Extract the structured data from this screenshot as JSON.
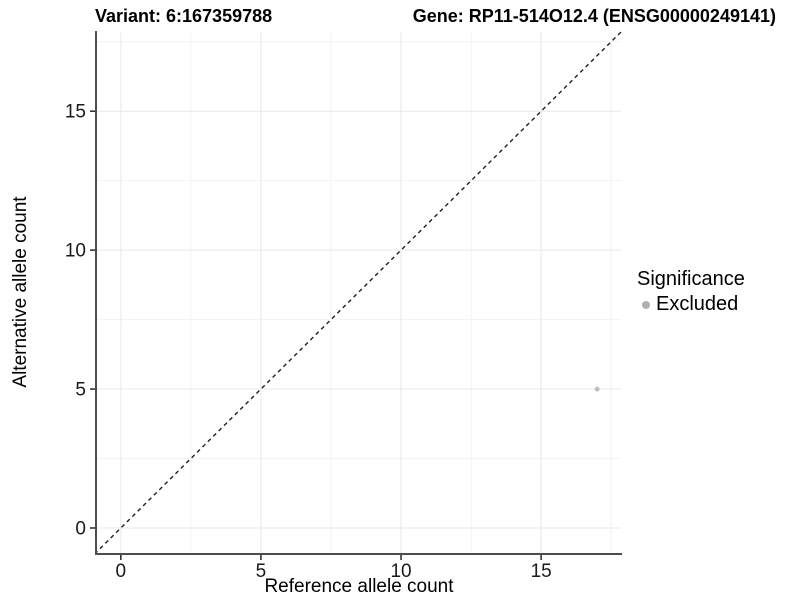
{
  "titles": {
    "variant": "Variant: 6:167359788",
    "gene": "Gene: RP11-514O12.4 (ENSG00000249141)"
  },
  "legend": {
    "title": "Significance",
    "items": [
      {
        "label": "Excluded",
        "color": "#b0b0b0"
      }
    ]
  },
  "chart_data": {
    "type": "scatter",
    "title": "Variant: 6:167359788  Gene: RP11-514O12.4 (ENSG00000249141)",
    "xlabel": "Reference allele count",
    "ylabel": "Alternative allele count",
    "xlim": [
      -0.85,
      17.85
    ],
    "ylim": [
      -0.9,
      17.85
    ],
    "x_ticks": [
      0,
      5,
      10,
      15
    ],
    "y_ticks": [
      0,
      5,
      10,
      15
    ],
    "x_minor_ticks": [
      2.5,
      7.5,
      12.5,
      17.5
    ],
    "y_minor_ticks": [
      2.5,
      7.5,
      12.5,
      17.5
    ],
    "grid": "major+minor",
    "legend_position": "right",
    "series": [
      {
        "name": "Excluded",
        "color": "#bebebe",
        "points": [
          {
            "x": 17,
            "y": 5
          }
        ]
      }
    ],
    "reference_line": {
      "type": "identity",
      "slope": 1,
      "intercept": 0,
      "style": "dashed",
      "color": "#1f1f1f"
    }
  },
  "colors": {
    "background": "#ffffff",
    "grid_major": "#e8e8e8",
    "grid_minor": "#f3f3f3",
    "axis_line": "#4d4d4d",
    "tick_mark": "#333333",
    "tick_label": "#1a1a1a",
    "point": "#bebebe",
    "legend_dot": "#b0b0b0",
    "reference_line": "#1f1f1f"
  }
}
